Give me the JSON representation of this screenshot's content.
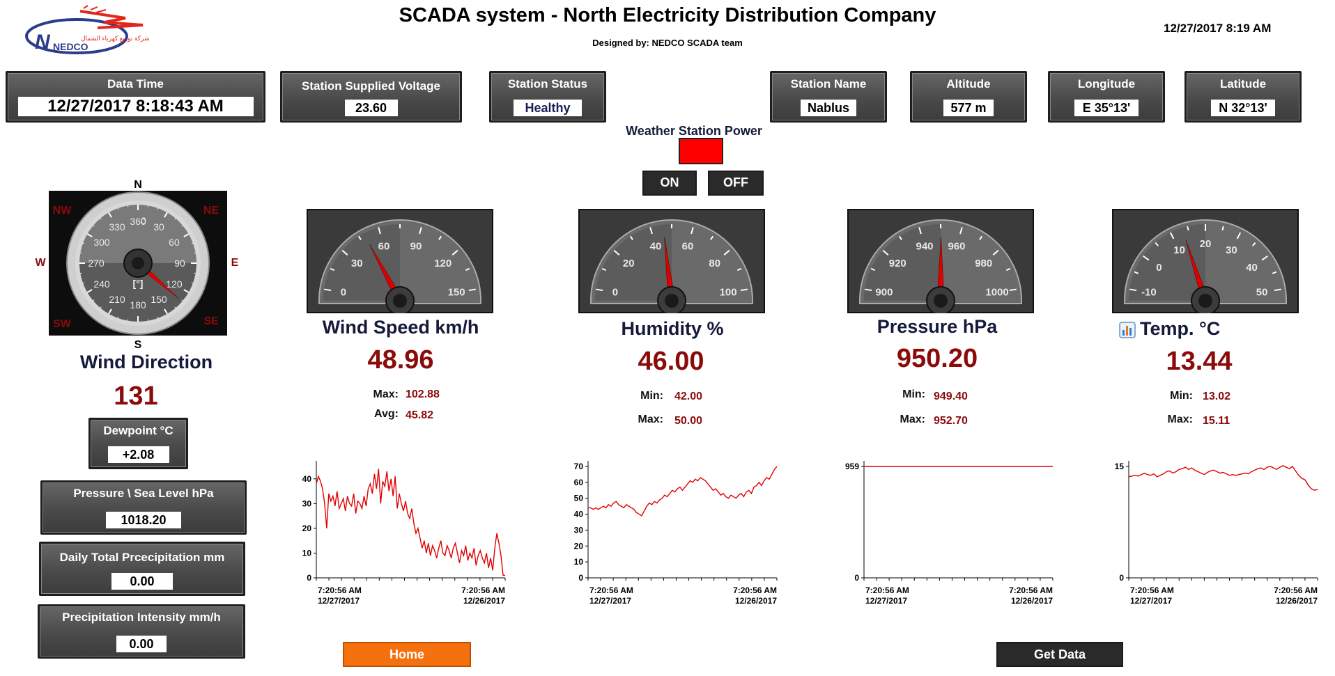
{
  "header": {
    "title": "SCADA system - North Electricity Distribution Company",
    "subtitle": "Designed by: NEDCO SCADA team",
    "datetime": "12/27/2017 8:19 AM",
    "logo": {
      "arabic": "شركة توزيع كهرباء الشمال",
      "latin": "NEDCO"
    }
  },
  "info": {
    "data_time": {
      "label": "Data Time",
      "value": "12/27/2017 8:18:43 AM"
    },
    "voltage": {
      "label": "Station Supplied Voltage",
      "value": "23.60"
    },
    "status": {
      "label": "Station Status",
      "value": "Healthy"
    },
    "name": {
      "label": "Station Name",
      "value": "Nablus"
    },
    "altitude": {
      "label": "Altitude",
      "value": "577 m"
    },
    "longitude": {
      "label": "Longitude",
      "value": "E 35°13'"
    },
    "latitude": {
      "label": "Latitude",
      "value": "N 32°13'"
    }
  },
  "power": {
    "label": "Weather Station Power",
    "indicator_color": "#ff0000",
    "on_label": "ON",
    "off_label": "OFF"
  },
  "compass": {
    "title": "Wind Direction",
    "value": "131",
    "needle_value": 131,
    "cardinals": {
      "n": "N",
      "ne": "NE",
      "e": "E",
      "se": "SE",
      "s": "S",
      "sw": "SW",
      "w": "W",
      "nw": "NW"
    },
    "unit": "[°]",
    "ticks": [
      "360",
      "30",
      "60",
      "90",
      "120",
      "150",
      "180",
      "210",
      "240",
      "270",
      "300",
      "330"
    ],
    "extra_tick": "0"
  },
  "left_panels": {
    "dewpoint": {
      "label": "Dewpoint  °C",
      "value": "+2.08"
    },
    "pressure_sea": {
      "label": "Pressure \\ Sea Level hPa",
      "value": "1018.20"
    },
    "precip_total": {
      "label": "Daily Total Prcecipitation mm",
      "value": "0.00"
    },
    "precip_intensity": {
      "label": "Precipitation Intensity mm/h",
      "value": "0.00"
    }
  },
  "gauges": [
    {
      "title": "Wind Speed km/h",
      "value": "48.96",
      "needle": 48.96,
      "min_scale": 0,
      "max_scale": 150,
      "ticks": [
        "0",
        "30",
        "60",
        "90",
        "120",
        "150"
      ],
      "stat1_label": "Max:",
      "stat1_value": "102.88",
      "stat2_label": "Avg:",
      "stat2_value": "45.82"
    },
    {
      "title": "Humidity %",
      "value": "46.00",
      "needle": 46,
      "min_scale": 0,
      "max_scale": 100,
      "ticks": [
        "0",
        "20",
        "40",
        "60",
        "80",
        "100"
      ],
      "stat1_label": "Min:",
      "stat1_value": "42.00",
      "stat2_label": "Max:",
      "stat2_value": "50.00"
    },
    {
      "title": "Pressure hPa",
      "value": "950.20",
      "needle": 950.2,
      "min_scale": 900,
      "max_scale": 1000,
      "ticks": [
        "900",
        "920",
        "940",
        "960",
        "980",
        "1000"
      ],
      "stat1_label": "Min:",
      "stat1_value": "949.40",
      "stat2_label": "Max:",
      "stat2_value": "952.70"
    },
    {
      "title": "Temp. °C",
      "value": "13.44",
      "needle": 13.44,
      "min_scale": -10,
      "max_scale": 50,
      "ticks": [
        "-10",
        "0",
        "10",
        "20",
        "30",
        "40",
        "50"
      ],
      "stat1_label": "Min:",
      "stat1_value": "13.02",
      "stat2_label": "Max:",
      "stat2_value": "15.11"
    }
  ],
  "icons": {
    "temp_chart": "bar-chart-icon",
    "needle_color": "#e00000",
    "line_color": "#e00000"
  },
  "chart_data": [
    {
      "type": "line",
      "x_start": "7:20:56 AM 12/27/2017",
      "x_end": "7:20:56 AM 12/26/2017",
      "x_start_time": "7:20:56 AM",
      "x_start_date": "12/27/2017",
      "x_end_time": "7:20:56 AM",
      "x_end_date": "12/26/2017",
      "ylim": [
        0,
        45
      ],
      "yticks": [
        "0",
        "10",
        "20",
        "30",
        "40"
      ],
      "values": [
        38,
        41,
        39,
        36,
        30,
        20,
        34,
        31,
        33,
        29,
        35,
        28,
        30,
        32,
        27,
        33,
        30,
        29,
        34,
        26,
        31,
        30,
        28,
        33,
        29,
        36,
        38,
        34,
        42,
        36,
        44,
        30,
        39,
        37,
        43,
        35,
        40,
        33,
        41,
        28,
        34,
        30,
        27,
        31,
        26,
        24,
        28,
        22,
        18,
        20,
        16,
        12,
        15,
        10,
        14,
        9,
        13,
        11,
        8,
        12,
        15,
        10,
        9,
        13,
        11,
        8,
        12,
        14,
        10,
        6,
        11,
        9,
        13,
        7,
        10,
        8,
        12,
        5,
        9,
        11,
        8,
        6,
        10,
        4,
        8,
        3,
        12,
        18,
        14,
        9,
        1,
        1
      ]
    },
    {
      "type": "line",
      "x_start": "7:20:56 AM 12/27/2017",
      "x_end": "7:20:56 AM 12/26/2017",
      "x_start_time": "7:20:56 AM",
      "x_start_date": "12/27/2017",
      "x_end_time": "7:20:56 AM",
      "x_end_date": "12/26/2017",
      "ylim": [
        0,
        70
      ],
      "yticks": [
        "0",
        "10",
        "20",
        "30",
        "40",
        "50",
        "60",
        "70"
      ],
      "values": [
        44,
        44,
        43,
        44,
        43,
        44,
        45,
        44,
        46,
        45,
        47,
        48,
        46,
        45,
        44,
        46,
        45,
        44,
        43,
        41,
        40,
        39,
        42,
        45,
        47,
        46,
        48,
        47,
        49,
        50,
        52,
        51,
        53,
        55,
        54,
        56,
        57,
        55,
        57,
        59,
        61,
        60,
        62,
        61,
        63,
        62,
        61,
        59,
        57,
        55,
        56,
        54,
        52,
        53,
        51,
        50,
        52,
        51,
        50,
        52,
        53,
        51,
        54,
        55,
        53,
        57,
        58,
        60,
        58,
        61,
        63,
        62,
        65,
        68,
        70
      ]
    },
    {
      "type": "line",
      "x_start": "7:20:56 AM 12/27/2017",
      "x_end": "7:20:56 AM 12/26/2017",
      "x_start_time": "7:20:56 AM",
      "x_start_date": "12/27/2017",
      "x_end_time": "7:20:56 AM",
      "x_end_date": "12/26/2017",
      "ylim": [
        0,
        959
      ],
      "yticks": [
        "0",
        "959"
      ],
      "values": [
        959,
        959,
        959,
        959,
        959,
        959,
        959,
        959,
        959,
        959
      ]
    },
    {
      "type": "line",
      "x_start": "7:20:56 AM 12/27/2017",
      "x_end": "7:20:56 AM 12/26/2017",
      "x_start_time": "7:20:56 AM",
      "x_start_date": "12/27/2017",
      "x_end_time": "7:20:56 AM",
      "x_end_date": "12/26/2017",
      "ylim": [
        0,
        15
      ],
      "yticks": [
        "0",
        "15"
      ],
      "values": [
        13.6,
        13.7,
        13.8,
        13.7,
        13.9,
        14.1,
        13.9,
        13.8,
        14.0,
        13.6,
        13.8,
        14.0,
        14.3,
        14.4,
        14.1,
        14.3,
        14.6,
        14.7,
        14.9,
        14.6,
        14.8,
        14.5,
        14.3,
        14.1,
        13.9,
        14.2,
        14.4,
        14.5,
        14.3,
        14.1,
        14.2,
        14.0,
        13.8,
        13.9,
        13.8,
        13.9,
        14.0,
        14.1,
        14.0,
        14.3,
        14.5,
        14.7,
        14.8,
        14.6,
        14.9,
        15.0,
        14.8,
        14.6,
        14.9,
        15.1,
        14.9,
        14.7,
        15.0,
        14.4,
        13.8,
        13.4,
        13.2,
        12.5,
        12.0,
        11.8,
        11.9
      ]
    }
  ],
  "buttons": {
    "home": "Home",
    "get_data": "Get Data"
  }
}
